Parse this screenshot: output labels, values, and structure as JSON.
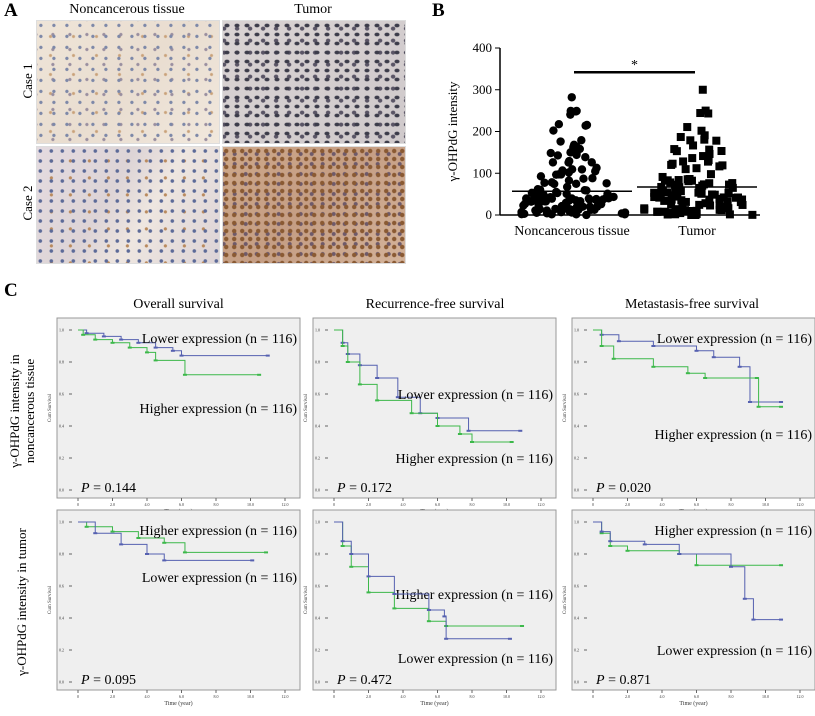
{
  "panel_a": {
    "label": "A",
    "col_titles": [
      "Noncancerous tissue",
      "Tumor"
    ],
    "row_titles": [
      "Case 1",
      "Case 2"
    ]
  },
  "panel_b": {
    "label": "B"
  },
  "panel_c": {
    "label": "C",
    "col_titles": [
      "Overall survival",
      "Recurrence-free survival",
      "Metastasis-free survival"
    ],
    "row_titles": [
      "γ-OHPdG intensity in noncancerous tissue",
      "γ-OHPdG intensity in tumor"
    ]
  },
  "colors": {
    "lower_row1": "#5560b0",
    "higher_row1": "#3cb84a",
    "plot_bg": "#efefef"
  },
  "chart_data": [
    {
      "type": "scatter",
      "panel": "B",
      "ylabel": "γ-OHPdG intensity",
      "categories": [
        "Noncancerous tissue",
        "Tumor"
      ],
      "ylim": [
        0,
        400
      ],
      "yticks": [
        0,
        100,
        200,
        300,
        400
      ],
      "n_per_group": 116,
      "medians": [
        57,
        67
      ],
      "max": [
        282,
        300
      ],
      "markers": [
        "circle",
        "square"
      ],
      "significance": "*"
    },
    {
      "type": "line",
      "subtype": "kaplan-meier",
      "panel": "C",
      "title": "Overall survival",
      "ylabel": "Cum Survival",
      "xlabel": "Time (year)",
      "xlim": [
        0,
        12
      ],
      "ylim": [
        0,
        1
      ],
      "xticks": [
        "0",
        "2.0",
        "4.0",
        "6.0",
        "8.0",
        "10.0",
        "12.0"
      ],
      "yticks": [
        "0.0",
        "0.2",
        "0.4",
        "0.6",
        "0.8",
        "1.0"
      ],
      "p_value": "0.144",
      "series": [
        {
          "name": "Lower expression (n = 116)",
          "color": "#5560b0",
          "points": [
            [
              0,
              1
            ],
            [
              0.5,
              0.98
            ],
            [
              1.5,
              0.96
            ],
            [
              2.5,
              0.94
            ],
            [
              3.5,
              0.92
            ],
            [
              4.5,
              0.89
            ],
            [
              5.5,
              0.87
            ],
            [
              6,
              0.84
            ],
            [
              11,
              0.84
            ]
          ]
        },
        {
          "name": "Higher expression (n = 116)",
          "color": "#3cb84a",
          "points": [
            [
              0,
              1
            ],
            [
              0.3,
              0.97
            ],
            [
              1,
              0.94
            ],
            [
              2,
              0.92
            ],
            [
              3,
              0.89
            ],
            [
              4,
              0.86
            ],
            [
              4.5,
              0.81
            ],
            [
              6.2,
              0.72
            ],
            [
              10.5,
              0.72
            ]
          ]
        }
      ]
    },
    {
      "type": "line",
      "subtype": "kaplan-meier",
      "panel": "C",
      "title": "Recurrence-free survival",
      "ylabel": "Cum Survival",
      "xlabel": "Time (year)",
      "xlim": [
        0,
        12
      ],
      "ylim": [
        0,
        1
      ],
      "xticks": [
        "0",
        "2.0",
        "4.0",
        "6.0",
        "8.0",
        "10.0",
        "12.0"
      ],
      "yticks": [
        "0.0",
        "0.2",
        "0.4",
        "0.6",
        "0.8",
        "1.0"
      ],
      "p_value": "0.172",
      "series": [
        {
          "name": "Lower expression (n = 116)",
          "color": "#5560b0",
          "points": [
            [
              0,
              1
            ],
            [
              0.5,
              0.92
            ],
            [
              0.8,
              0.85
            ],
            [
              1.5,
              0.78
            ],
            [
              2.5,
              0.7
            ],
            [
              3.7,
              0.58
            ],
            [
              5,
              0.48
            ],
            [
              6,
              0.45
            ],
            [
              7.8,
              0.37
            ],
            [
              10.8,
              0.37
            ]
          ]
        },
        {
          "name": "Higher expression (n = 116)",
          "color": "#3cb84a",
          "points": [
            [
              0,
              1
            ],
            [
              0.5,
              0.9
            ],
            [
              0.8,
              0.8
            ],
            [
              1.5,
              0.66
            ],
            [
              2.5,
              0.56
            ],
            [
              4.5,
              0.48
            ],
            [
              6,
              0.4
            ],
            [
              7.3,
              0.35
            ],
            [
              8,
              0.3
            ],
            [
              10.3,
              0.3
            ]
          ]
        }
      ]
    },
    {
      "type": "line",
      "subtype": "kaplan-meier",
      "panel": "C",
      "title": "Metastasis-free survival",
      "ylabel": "Cum Survival",
      "xlabel": "Time (year)",
      "xlim": [
        0,
        12
      ],
      "ylim": [
        0,
        1
      ],
      "xticks": [
        "0",
        "2.0",
        "4.0",
        "6.0",
        "8.0",
        "10.0",
        "12.0"
      ],
      "yticks": [
        "0.0",
        "0.2",
        "0.4",
        "0.6",
        "0.8",
        "1.0"
      ],
      "p_value": "0.020",
      "series": [
        {
          "name": "Lower expression (n = 116)",
          "color": "#5560b0",
          "points": [
            [
              0,
              1
            ],
            [
              0.5,
              0.97
            ],
            [
              1.5,
              0.93
            ],
            [
              3.5,
              0.9
            ],
            [
              6,
              0.87
            ],
            [
              7,
              0.83
            ],
            [
              8.5,
              0.77
            ],
            [
              9.1,
              0.55
            ],
            [
              10.9,
              0.55
            ]
          ]
        },
        {
          "name": "Higher expression (n = 116)",
          "color": "#3cb84a",
          "points": [
            [
              0,
              1
            ],
            [
              0.5,
              0.9
            ],
            [
              1.2,
              0.82
            ],
            [
              3.5,
              0.77
            ],
            [
              5.5,
              0.73
            ],
            [
              6.5,
              0.7
            ],
            [
              9.5,
              0.7
            ],
            [
              9.6,
              0.52
            ],
            [
              10.9,
              0.52
            ]
          ]
        }
      ]
    },
    {
      "type": "line",
      "subtype": "kaplan-meier",
      "panel": "C",
      "title": "Overall survival",
      "ylabel": "Cum Survival",
      "xlabel": "Time (year)",
      "xlim": [
        0,
        12
      ],
      "ylim": [
        0,
        1
      ],
      "xticks": [
        "0",
        "2.0",
        "4.0",
        "6.0",
        "8.0",
        "10.0",
        "12.0"
      ],
      "yticks": [
        "0.0",
        "0.2",
        "0.4",
        "0.6",
        "0.8",
        "1.0"
      ],
      "p_value": "0.095",
      "series": [
        {
          "name": "Higher expression (n = 116)",
          "color": "#3cb84a",
          "points": [
            [
              0,
              1
            ],
            [
              0.5,
              0.97
            ],
            [
              2,
              0.94
            ],
            [
              3.5,
              0.9
            ],
            [
              5,
              0.87
            ],
            [
              6.2,
              0.81
            ],
            [
              10.9,
              0.81
            ]
          ]
        },
        {
          "name": "Lower expression (n = 116)",
          "color": "#5560b0",
          "points": [
            [
              0,
              1
            ],
            [
              1,
              0.93
            ],
            [
              2.5,
              0.86
            ],
            [
              4,
              0.8
            ],
            [
              5,
              0.76
            ],
            [
              10.1,
              0.76
            ]
          ]
        }
      ]
    },
    {
      "type": "line",
      "subtype": "kaplan-meier",
      "panel": "C",
      "title": "Recurrence-free survival",
      "ylabel": "Cum Survival",
      "xlabel": "Time (year)",
      "xlim": [
        0,
        12
      ],
      "ylim": [
        0,
        1
      ],
      "xticks": [
        "0",
        "2.0",
        "4.0",
        "6.0",
        "8.0",
        "10.0",
        "12.0"
      ],
      "yticks": [
        "0.0",
        "0.2",
        "0.4",
        "0.6",
        "0.8",
        "1.0"
      ],
      "p_value": "0.472",
      "series": [
        {
          "name": "Higher expression (n = 116)",
          "color": "#3cb84a",
          "points": [
            [
              0,
              1
            ],
            [
              0.5,
              0.85
            ],
            [
              1,
              0.72
            ],
            [
              2,
              0.56
            ],
            [
              3.5,
              0.46
            ],
            [
              5.5,
              0.38
            ],
            [
              6.5,
              0.35
            ],
            [
              10.9,
              0.35
            ]
          ]
        },
        {
          "name": "Lower expression (n = 116)",
          "color": "#5560b0",
          "points": [
            [
              0,
              1
            ],
            [
              0.5,
              0.88
            ],
            [
              1,
              0.8
            ],
            [
              2,
              0.66
            ],
            [
              3.5,
              0.55
            ],
            [
              5.5,
              0.45
            ],
            [
              6.4,
              0.41
            ],
            [
              6.5,
              0.27
            ],
            [
              10.2,
              0.27
            ]
          ]
        }
      ]
    },
    {
      "type": "line",
      "subtype": "kaplan-meier",
      "panel": "C",
      "title": "Metastasis-free survival",
      "ylabel": "Cum Survival",
      "xlabel": "Time (year)",
      "xlim": [
        0,
        12
      ],
      "ylim": [
        0,
        1
      ],
      "xticks": [
        "0",
        "2.0",
        "4.0",
        "6.0",
        "8.0",
        "10.0",
        "12.0"
      ],
      "yticks": [
        "0.0",
        "0.2",
        "0.4",
        "0.6",
        "0.8",
        "1.0"
      ],
      "p_value": "0.871",
      "series": [
        {
          "name": "Higher expression (n = 116)",
          "color": "#3cb84a",
          "points": [
            [
              0,
              1
            ],
            [
              0.5,
              0.93
            ],
            [
              1,
              0.85
            ],
            [
              2,
              0.82
            ],
            [
              5,
              0.8
            ],
            [
              6,
              0.73
            ],
            [
              10.9,
              0.73
            ]
          ]
        },
        {
          "name": "Lower expression (n = 116)",
          "color": "#5560b0",
          "points": [
            [
              0,
              1
            ],
            [
              0.5,
              0.94
            ],
            [
              1,
              0.88
            ],
            [
              3,
              0.86
            ],
            [
              5,
              0.8
            ],
            [
              8,
              0.72
            ],
            [
              8.8,
              0.52
            ],
            [
              9.3,
              0.39
            ],
            [
              10.9,
              0.39
            ]
          ]
        }
      ]
    }
  ]
}
